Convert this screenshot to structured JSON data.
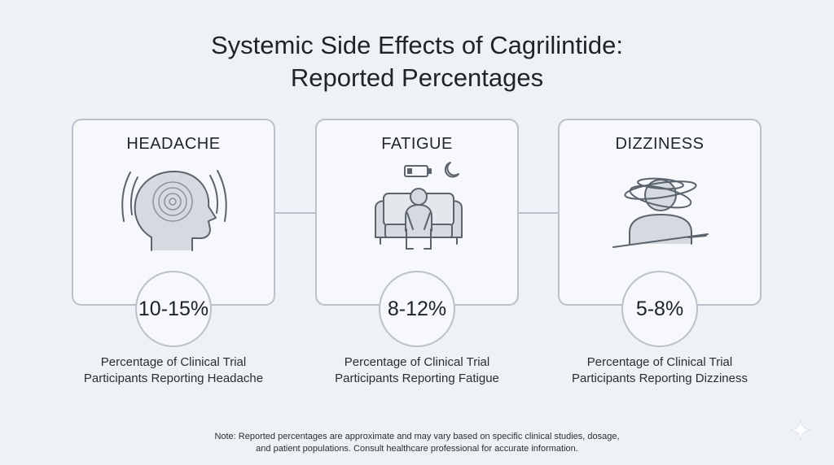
{
  "title": {
    "line1": "Systemic Side Effects of Cagrilintide:",
    "line2": "Reported Percentages"
  },
  "cards": [
    {
      "label": "HEADACHE",
      "icon": "head-with-pain-waves-icon",
      "value": "10-15%",
      "caption_line1": "Percentage of Clinical Trial",
      "caption_line2": "Participants Reporting Headache"
    },
    {
      "label": "FATIGUE",
      "icon": "person-slumped-on-couch-icon",
      "value": "8-12%",
      "caption_line1": "Percentage of Clinical Trial",
      "caption_line2": "Participants Reporting Fatigue"
    },
    {
      "label": "DIZZINESS",
      "icon": "person-with-spinning-orbits-icon",
      "value": "5-8%",
      "caption_line1": "Percentage of Clinical Trial",
      "caption_line2": "Participants Reporting Dizziness"
    }
  ],
  "note": {
    "line1": "Note: Reported percentages are approximate and may vary based on specific clinical studies, dosage,",
    "line2": "and patient populations. Consult healthcare professional for accurate information."
  },
  "colors": {
    "background": "#eef2f7",
    "card_fill": "#f6f8fb",
    "border": "#b9c1cb",
    "icon_stroke": "#5b636c",
    "icon_fill": "#d5dae0"
  }
}
